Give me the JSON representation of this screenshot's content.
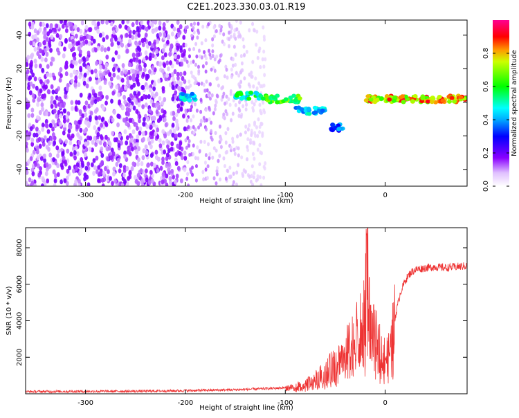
{
  "title": "C2E1.2023.330.03.01.R19",
  "chart_data": [
    {
      "type": "heatmap",
      "xlabel": "Height of straight line (km)",
      "ylabel": "Frequency (Hz)",
      "xlim": [
        -360,
        82
      ],
      "ylim": [
        -50,
        49
      ],
      "xticks": [
        -300,
        -200,
        -100,
        0
      ],
      "yticks": [
        -40,
        -20,
        0,
        20,
        40
      ],
      "colorbar": {
        "label": "Normalized spectral amplitude",
        "range": [
          0,
          1
        ],
        "ticks": [
          0.0,
          0.2,
          0.4,
          0.6,
          0.8
        ],
        "tick_labels": [
          "0.0",
          "0.2",
          "0.4",
          "0.6",
          "0.8"
        ],
        "colormap": "rainbow"
      },
      "features": [
        {
          "x_range": [
            -360,
            -200
          ],
          "freq_range": [
            -50,
            49
          ],
          "amplitude": 0.1,
          "note": "broadband noise"
        },
        {
          "x_range": [
            -205,
            -190
          ],
          "freq": 3,
          "amplitude": 0.5
        },
        {
          "x_range": [
            -150,
            -125
          ],
          "freq": 4,
          "amplitude": 0.6
        },
        {
          "x_range": [
            -125,
            -85
          ],
          "freq": 2,
          "amplitude": 0.7
        },
        {
          "x_range": [
            -90,
            -60
          ],
          "freq": -5,
          "amplitude": 0.5
        },
        {
          "x_range": [
            -55,
            -40
          ],
          "freq": -15,
          "amplitude": 0.4
        },
        {
          "x_range": [
            -20,
            82
          ],
          "freq": 2,
          "amplitude": 0.9
        }
      ]
    },
    {
      "type": "line",
      "xlabel": "Height of straight line (km)",
      "ylabel": "SNR (10 * v/v)",
      "xlim": [
        -360,
        82
      ],
      "ylim": [
        0,
        9100
      ],
      "xticks": [
        -300,
        -200,
        -100,
        0
      ],
      "yticks": [
        2000,
        4000,
        6000,
        8000
      ],
      "color": "#ee3333",
      "series": [
        {
          "x": [
            -360,
            -300,
            -250,
            -200,
            -150,
            -120,
            -100,
            -90,
            -80,
            -70,
            -60,
            -50,
            -40,
            -30,
            -25,
            -20,
            -18,
            -15,
            -10,
            -5,
            0,
            5,
            10,
            15,
            20,
            25,
            30,
            40,
            50,
            60,
            70,
            82
          ],
          "values": [
            120,
            130,
            140,
            170,
            220,
            280,
            330,
            400,
            520,
            800,
            1200,
            1700,
            2300,
            3100,
            3600,
            4200,
            8900,
            3500,
            3100,
            2600,
            2000,
            2400,
            4200,
            5500,
            6200,
            6600,
            6800,
            6900,
            6950,
            6900,
            6950,
            7000
          ]
        }
      ]
    }
  ]
}
